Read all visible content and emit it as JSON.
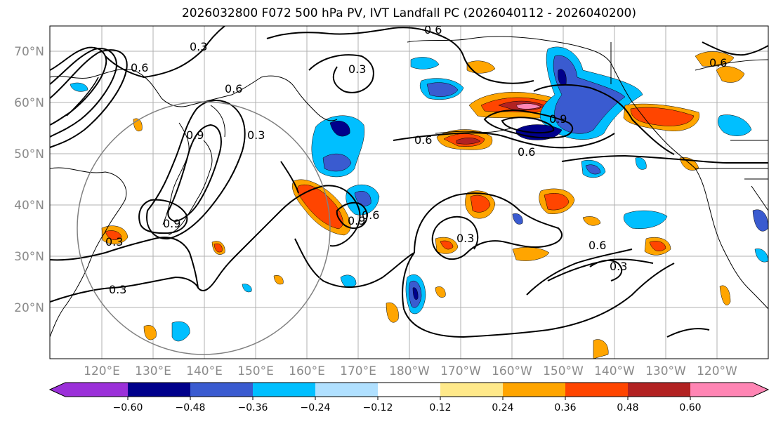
{
  "title": "2026032800 F072 500 hPa PV, IVT Landfall PC (2026040112 - 2026040200)",
  "lat_labels": [
    "70°N",
    "60°N",
    "50°N",
    "40°N",
    "30°N",
    "20°N"
  ],
  "lon_labels": [
    "120°E",
    "130°E",
    "140°E",
    "150°E",
    "160°E",
    "170°E",
    "180°W",
    "170°W",
    "160°W",
    "150°W",
    "140°W",
    "130°W",
    "120°W"
  ],
  "contour_labels": [
    "0.3",
    "0.6",
    "0.9",
    "0.3",
    "0.6",
    "0.3",
    "0.6",
    "0.9",
    "0.6",
    "0.3",
    "0.6",
    "0.3",
    "0.3",
    "0.6",
    "0.9",
    "0.3",
    "0.6",
    "0.9",
    "0.6"
  ],
  "colorbar": {
    "ticks": [
      "−0.60",
      "−0.48",
      "−0.36",
      "−0.24",
      "−0.12",
      "0.12",
      "0.24",
      "0.36",
      "0.48",
      "0.60"
    ],
    "colors": [
      "#9b30d9",
      "#00008b",
      "#3a5bd0",
      "#00bfff",
      "#b0e0ff",
      "#ffffff",
      "#ffe98a",
      "#ffa500",
      "#ff4500",
      "#b22222",
      "#ff85b4"
    ]
  }
}
